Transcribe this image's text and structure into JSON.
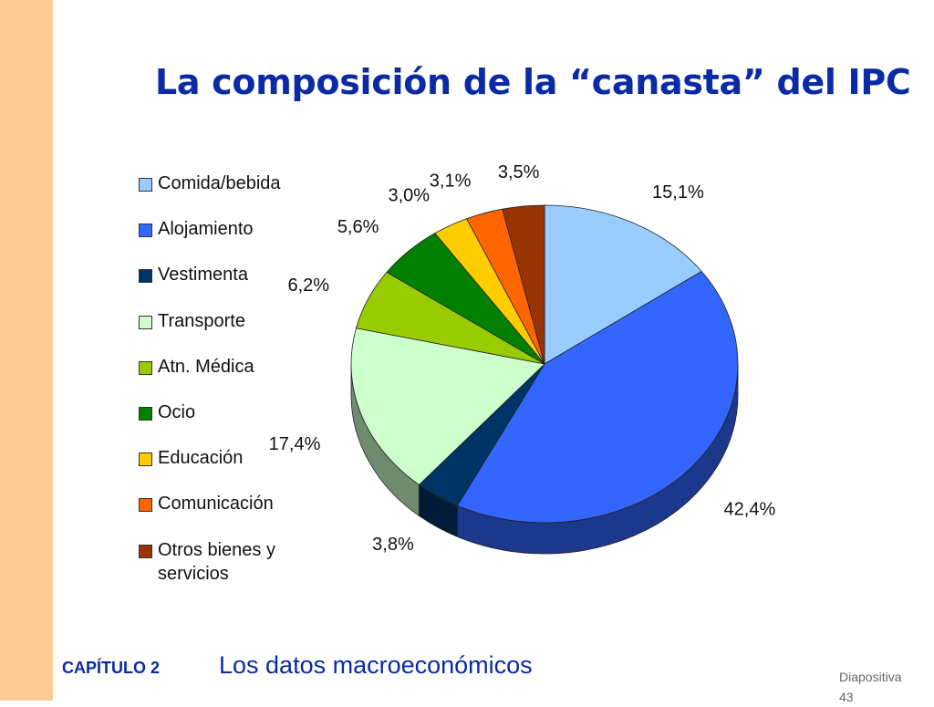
{
  "slide": {
    "title": "La composición de la “canasta” del IPC",
    "footer_chapter": "CAPÍTULO 2",
    "footer_subject": "Los datos macroeconómicos",
    "slide_word": "Diapositiva",
    "slide_number": "43",
    "accent_color": "#fecb94",
    "title_color": "#0a2aa6"
  },
  "chart_data": {
    "type": "pie",
    "title": "",
    "categories": [
      "Comida/bebida",
      "Alojamiento",
      "Vestimenta",
      "Transporte",
      "Atn. Médica",
      "Ocio",
      "Educación",
      "Comunicación",
      "Otros bienes y servicios"
    ],
    "values": [
      15.1,
      42.4,
      3.8,
      17.4,
      6.2,
      5.6,
      3.0,
      3.1,
      3.5
    ],
    "labels": [
      "15,1%",
      "42,4%",
      "3,8%",
      "17,4%",
      "6,2%",
      "5,6%",
      "3,0%",
      "3,1%",
      "3,5%"
    ],
    "colors": [
      "#99ccff",
      "#3366ff",
      "#003366",
      "#ccffcc",
      "#99cc00",
      "#008000",
      "#ffcc00",
      "#ff6600",
      "#993300"
    ],
    "legend_lines": [
      [
        "Comida/bebida"
      ],
      [
        "Alojamiento"
      ],
      [
        "Vestimenta"
      ],
      [
        "Transporte"
      ],
      [
        "Atn. Médica"
      ],
      [
        "Ocio"
      ],
      [
        "Educación"
      ],
      [
        "Comunicación"
      ],
      [
        "Otros bienes y",
        "servicios"
      ]
    ],
    "legend_position": "left",
    "style": "3d-tilted"
  }
}
